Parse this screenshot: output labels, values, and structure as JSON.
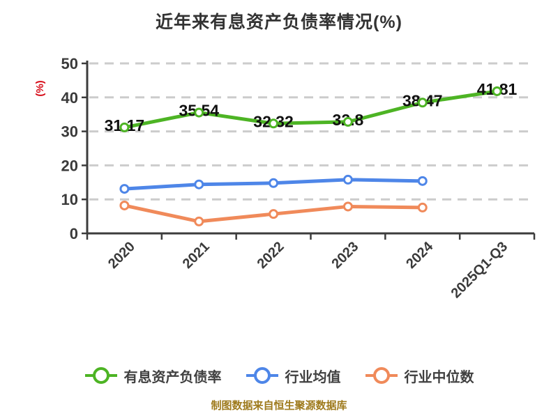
{
  "title": "近年来有息资产负债率情况(%)",
  "source_note": "制图数据来自恒生聚源数据库",
  "chart_data": {
    "type": "line",
    "title": "近年来有息资产负债率情况(%)",
    "xlabel": "",
    "ylabel": "(%)",
    "ylim": [
      0,
      50
    ],
    "y_ticks": [
      0,
      10,
      20,
      30,
      40,
      50
    ],
    "grid": "horizontal-dashed",
    "legend_position": "bottom",
    "x_label_rotation": 45,
    "categories": [
      "2020",
      "2021",
      "2022",
      "2023",
      "2024",
      "2025Q1-Q3"
    ],
    "series": [
      {
        "name": "有息资产负债率",
        "color": "#4db424",
        "values": [
          31.17,
          35.54,
          32.32,
          32.8,
          38.47,
          41.81
        ],
        "labels": [
          "31.17",
          "35.54",
          "32.32",
          "32.8",
          "38.47",
          "41.81"
        ]
      },
      {
        "name": "行业均值",
        "color": "#4e86e8",
        "values": [
          13.1,
          14.4,
          14.8,
          15.8,
          15.4,
          null
        ],
        "labels": []
      },
      {
        "name": "行业中位数",
        "color": "#f08a5a",
        "values": [
          8.2,
          3.5,
          5.7,
          7.9,
          7.6,
          null
        ],
        "labels": []
      }
    ],
    "colors": {
      "axis": "#3c3c3c",
      "gridline": "#cccccc",
      "tick_text": "#3a3a3a",
      "ylabel_text": "#d60a16",
      "data_label": "#111111",
      "source_note": "#9e7a1c",
      "marker_fill": "#ffffff"
    }
  }
}
